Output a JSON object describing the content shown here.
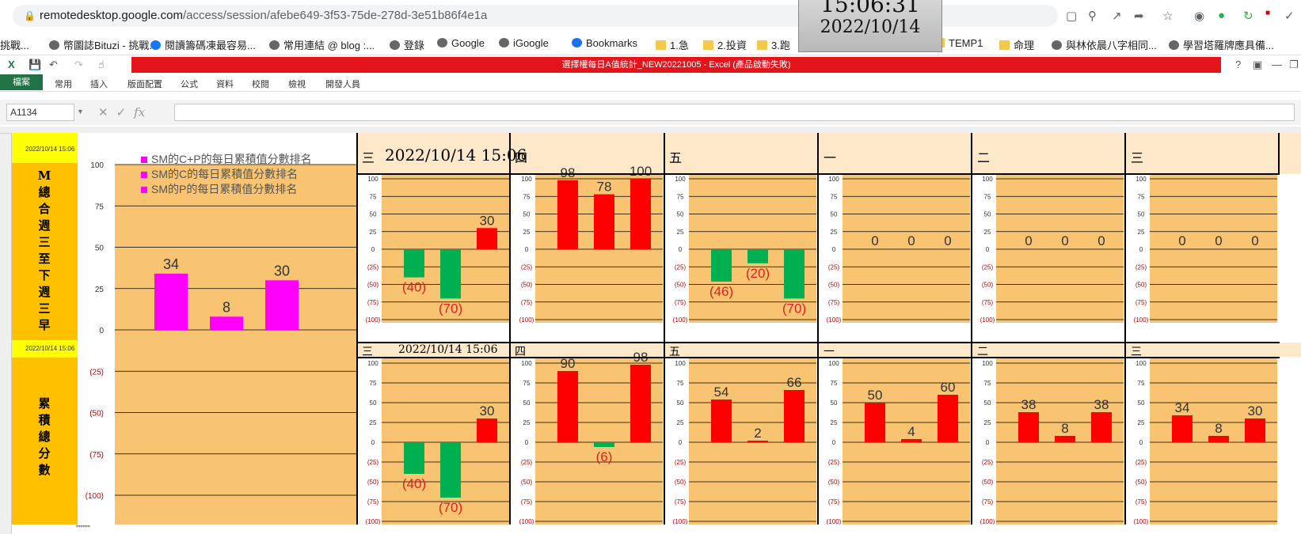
{
  "browser": {
    "url_host": "remotedesktop.google.com",
    "url_path": "/access/session/afebe649-3f53-75de-278d-3e51b86f4e1a",
    "bookmarks": [
      {
        "label": "幣圖誌Bituzi - 挑戰...",
        "icon": "bituzi-icon"
      },
      {
        "label": "閱讀籌碼凍最容易...",
        "icon": "facebook-icon"
      },
      {
        "label": "常用連結 @ blog :...",
        "icon": "blog-icon"
      },
      {
        "label": "登錄",
        "icon": "login-icon"
      },
      {
        "label": "Google",
        "icon": "google-icon"
      },
      {
        "label": "iGoogle",
        "icon": "google-icon"
      },
      {
        "label": "Bookmarks",
        "icon": "star-icon"
      },
      {
        "label": "1.急",
        "icon": "folder-icon"
      },
      {
        "label": "2.投資",
        "icon": "folder-icon"
      },
      {
        "label": "3.跑",
        "icon": "folder-icon"
      },
      {
        "label": "TEMP1",
        "icon": "folder-icon"
      },
      {
        "label": "命理",
        "icon": "folder-icon"
      },
      {
        "label": "與林依晨八字相同...",
        "icon": "globe-icon"
      },
      {
        "label": "學習塔羅牌應具備...",
        "icon": "globe-icon"
      }
    ]
  },
  "clock": {
    "time": "15:06:31",
    "date": "2022/10/14"
  },
  "excel": {
    "title": "選擇權每日A值統計_NEW20221005 - Excel (產品啟動失敗)",
    "tabs": [
      "檔案",
      "常用",
      "插入",
      "版面配置",
      "公式",
      "資料",
      "校閱",
      "檢視",
      "開發人員"
    ],
    "name_box": "A1134",
    "fx": "fx"
  },
  "sheet": {
    "stamp": "2022/10/14 15:06",
    "top_label": "M總合週三至下週三早",
    "bottom_label": "累積總分數",
    "header_date": "2022/10/14 15:06",
    "days": [
      "三",
      "四",
      "五",
      "一",
      "二",
      "三"
    ],
    "legend": [
      "SM的C+P的每日累積值分數排名",
      "SM的C的每日累積值分數排名",
      "SM的P的每日累積值分數排名"
    ],
    "footer": "\"\"\"\"\""
  },
  "colors": {
    "positive": "#ff0000",
    "negative": "#00b050",
    "big_bar": "#ff00ff",
    "plot_bg": "#f8c471"
  },
  "chart_data": [
    {
      "type": "bar",
      "title": "",
      "ylim": [
        -100,
        100
      ],
      "yticks": [
        "100",
        "75",
        "50",
        "25",
        "0",
        "(25)",
        "(50)",
        "(75)",
        "(100)"
      ],
      "values": [
        34,
        8,
        30
      ],
      "labels": [
        "34",
        "8",
        "30"
      ]
    },
    {
      "type": "bar",
      "panel": "top-1",
      "ylim": [
        -100,
        100
      ],
      "values": [
        -40,
        -70,
        30
      ],
      "labels": [
        "(40)",
        "(70)",
        "30"
      ]
    },
    {
      "type": "bar",
      "panel": "top-2",
      "ylim": [
        -100,
        100
      ],
      "values": [
        98,
        78,
        100
      ],
      "labels": [
        "98",
        "78",
        "100"
      ]
    },
    {
      "type": "bar",
      "panel": "top-3",
      "ylim": [
        -100,
        100
      ],
      "values": [
        -46,
        -20,
        -70
      ],
      "labels": [
        "(46)",
        "(20)",
        "(70)"
      ]
    },
    {
      "type": "bar",
      "panel": "top-4",
      "ylim": [
        -100,
        100
      ],
      "values": [
        0,
        0,
        0
      ],
      "labels": [
        "0",
        "0",
        "0"
      ]
    },
    {
      "type": "bar",
      "panel": "top-5",
      "ylim": [
        -100,
        100
      ],
      "values": [
        0,
        0,
        0
      ],
      "labels": [
        "0",
        "0",
        "0"
      ]
    },
    {
      "type": "bar",
      "panel": "top-6",
      "ylim": [
        -100,
        100
      ],
      "values": [
        0,
        0,
        0
      ],
      "labels": [
        "0",
        "0",
        "0"
      ]
    },
    {
      "type": "bar",
      "panel": "bottom-1",
      "ylim": [
        -100,
        100
      ],
      "values": [
        -40,
        -70,
        30
      ],
      "labels": [
        "(40)",
        "(70)",
        "30"
      ]
    },
    {
      "type": "bar",
      "panel": "bottom-2",
      "ylim": [
        -100,
        100
      ],
      "values": [
        90,
        -6,
        98
      ],
      "labels": [
        "90",
        "(6)",
        "98"
      ]
    },
    {
      "type": "bar",
      "panel": "bottom-3",
      "ylim": [
        -100,
        100
      ],
      "values": [
        54,
        2,
        66
      ],
      "labels": [
        "54",
        "2",
        "66"
      ]
    },
    {
      "type": "bar",
      "panel": "bottom-4",
      "ylim": [
        -100,
        100
      ],
      "values": [
        50,
        4,
        60
      ],
      "labels": [
        "50",
        "4",
        "60"
      ]
    },
    {
      "type": "bar",
      "panel": "bottom-5",
      "ylim": [
        -100,
        100
      ],
      "values": [
        38,
        8,
        38
      ],
      "labels": [
        "38",
        "8",
        "38"
      ]
    },
    {
      "type": "bar",
      "panel": "bottom-6",
      "ylim": [
        -100,
        100
      ],
      "values": [
        34,
        8,
        30
      ],
      "labels": [
        "34",
        "8",
        "30"
      ]
    }
  ]
}
